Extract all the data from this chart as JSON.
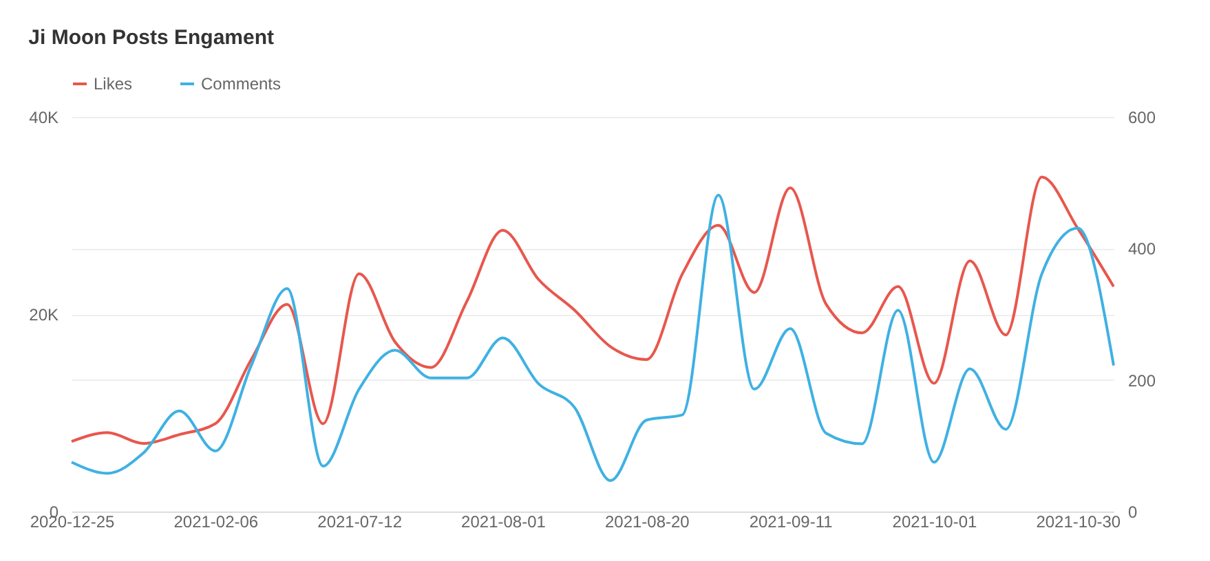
{
  "chart_data": {
    "type": "line",
    "title": "Ji Moon Posts Engament",
    "categories": [
      "2020-12-25",
      null,
      null,
      null,
      "2021-02-06",
      null,
      null,
      null,
      "2021-07-12",
      null,
      null,
      null,
      "2021-08-01",
      null,
      null,
      null,
      "2021-08-20",
      null,
      null,
      null,
      "2021-09-11",
      null,
      null,
      null,
      "2021-10-01",
      null,
      null,
      null,
      "2021-10-30",
      null
    ],
    "series": [
      {
        "name": "Likes",
        "color": "#e8574d",
        "values": [
          7100,
          8000,
          6900,
          7800,
          8900,
          15400,
          21000,
          8900,
          24100,
          17200,
          14600,
          21300,
          28500,
          23500,
          20400,
          16700,
          15400,
          24100,
          29000,
          22200,
          32800,
          21000,
          18100,
          22800,
          13000,
          25400,
          17900,
          33900,
          28700,
          22800
        ]
      },
      {
        "name": "Comments",
        "color": "#3fb1e3",
        "axis": "y2",
        "values": [
          75,
          58,
          89,
          153,
          92,
          222,
          339,
          69,
          186,
          245,
          203,
          203,
          264,
          194,
          158,
          47,
          139,
          147,
          481,
          186,
          278,
          119,
          103,
          306,
          75,
          217,
          125,
          361,
          431,
          222
        ]
      }
    ],
    "ylim": [
      0,
      40000
    ],
    "yticks": [
      0,
      {
        "value": 20000,
        "label": "20K"
      },
      {
        "value": 40000,
        "label": "40K"
      }
    ],
    "y2lim": [
      0,
      600
    ],
    "y2ticks": [
      0,
      200,
      400,
      600
    ],
    "grid": "y",
    "legend": "top left",
    "marker": "none",
    "line_style": "solid"
  }
}
